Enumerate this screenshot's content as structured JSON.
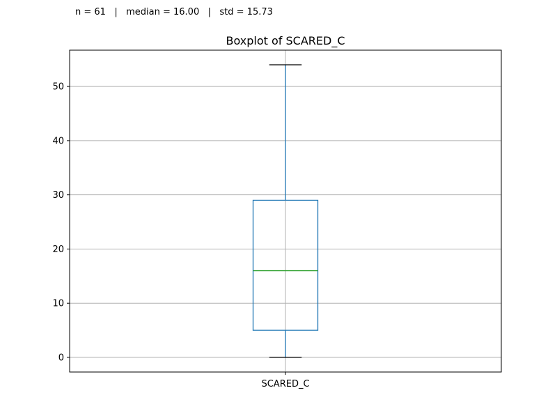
{
  "stats_text": "n = 61   |   median = 16.00   |   std = 15.73",
  "chart_data": {
    "type": "boxplot",
    "title": "Boxplot of SCARED_C",
    "xlabel": "",
    "ylabel": "",
    "categories": [
      "SCARED_C"
    ],
    "boxes": [
      {
        "name": "SCARED_C",
        "whisker_low": 0,
        "q1": 5,
        "median": 16,
        "q3": 29,
        "whisker_high": 54
      }
    ],
    "n": 61,
    "median": 16.0,
    "std": 15.73,
    "ylim": [
      -2.7,
      56.7
    ],
    "yticks": [
      0,
      10,
      20,
      30,
      40,
      50
    ],
    "grid": true,
    "colors": {
      "box": "#1f77b4",
      "median": "#2ca02c",
      "whisker_cap": "#000000",
      "grid": "#b0b0b0",
      "axes": "#000000"
    }
  }
}
